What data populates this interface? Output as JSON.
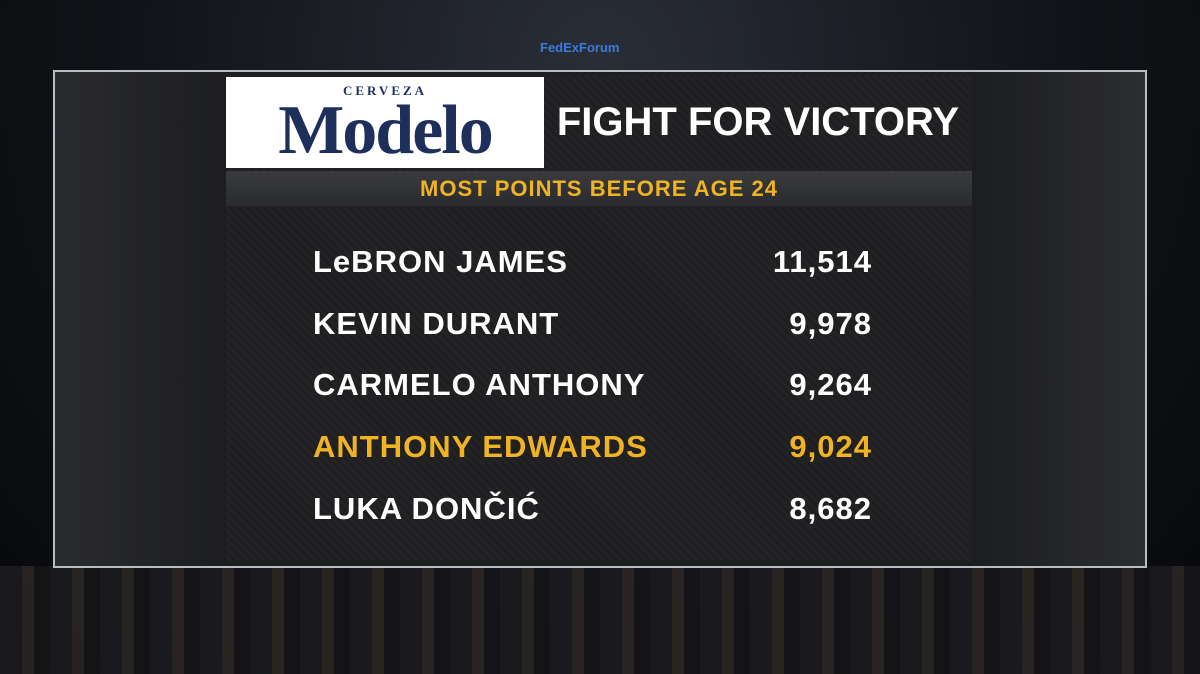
{
  "background": {
    "sign": "FedExForum"
  },
  "sponsor": {
    "tagline": "CERVEZA",
    "brand": "Modelo"
  },
  "header": {
    "title": "FIGHT FOR VICTORY",
    "subtitle": "MOST POINTS BEFORE AGE 24"
  },
  "table": {
    "rows": [
      {
        "name": "LeBRON JAMES",
        "points": "11,514",
        "color": "#ffffff"
      },
      {
        "name": "KEVIN DURANT",
        "points": "9,978",
        "color": "#ffffff"
      },
      {
        "name": "CARMELO ANTHONY",
        "points": "9,264",
        "color": "#ffffff"
      },
      {
        "name": "ANTHONY EDWARDS",
        "points": "9,024",
        "color": "#f0b323"
      },
      {
        "name": "LUKA DONČIĆ",
        "points": "8,682",
        "color": "#ffffff"
      }
    ]
  }
}
